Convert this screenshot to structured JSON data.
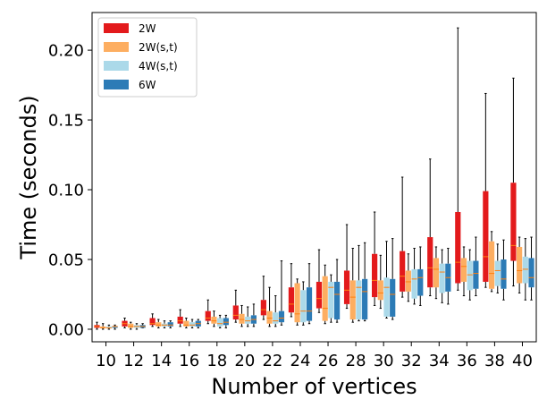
{
  "chart_data": {
    "type": "boxplot",
    "xlabel": "Number of vertices",
    "ylabel": "Time (seconds)",
    "ylim": [
      -0.009,
      0.227
    ],
    "yticks": [
      0.0,
      0.05,
      0.1,
      0.15,
      0.2
    ],
    "ytick_labels": [
      "0.00",
      "0.05",
      "0.10",
      "0.15",
      "0.20"
    ],
    "categories": [
      "10",
      "12",
      "14",
      "16",
      "18",
      "20",
      "22",
      "24",
      "26",
      "28",
      "30",
      "32",
      "34",
      "36",
      "38",
      "40"
    ],
    "legend_position": "top-left",
    "series": [
      {
        "name": "2W",
        "color": "#e31a1c",
        "boxes": [
          {
            "whislo": 0.0,
            "q1": 0.001,
            "med": 0.002,
            "q3": 0.003,
            "whishi": 0.005
          },
          {
            "whislo": 0.001,
            "q1": 0.002,
            "med": 0.004,
            "q3": 0.006,
            "whishi": 0.008
          },
          {
            "whislo": 0.002,
            "q1": 0.003,
            "med": 0.004,
            "q3": 0.008,
            "whishi": 0.011
          },
          {
            "whislo": 0.002,
            "q1": 0.004,
            "med": 0.006,
            "q3": 0.009,
            "whishi": 0.014
          },
          {
            "whislo": 0.004,
            "q1": 0.006,
            "med": 0.008,
            "q3": 0.013,
            "whishi": 0.021
          },
          {
            "whislo": 0.005,
            "q1": 0.007,
            "med": 0.01,
            "q3": 0.017,
            "whishi": 0.028
          },
          {
            "whislo": 0.007,
            "q1": 0.01,
            "med": 0.014,
            "q3": 0.021,
            "whishi": 0.038
          },
          {
            "whislo": 0.009,
            "q1": 0.012,
            "med": 0.018,
            "q3": 0.03,
            "whishi": 0.047
          },
          {
            "whislo": 0.012,
            "q1": 0.015,
            "med": 0.022,
            "q3": 0.034,
            "whishi": 0.057
          },
          {
            "whislo": 0.015,
            "q1": 0.018,
            "med": 0.028,
            "q3": 0.042,
            "whishi": 0.075
          },
          {
            "whislo": 0.017,
            "q1": 0.023,
            "med": 0.035,
            "q3": 0.054,
            "whishi": 0.084
          },
          {
            "whislo": 0.023,
            "q1": 0.027,
            "med": 0.038,
            "q3": 0.056,
            "whishi": 0.109
          },
          {
            "whislo": 0.024,
            "q1": 0.03,
            "med": 0.044,
            "q3": 0.066,
            "whishi": 0.122
          },
          {
            "whislo": 0.028,
            "q1": 0.033,
            "med": 0.048,
            "q3": 0.084,
            "whishi": 0.216
          },
          {
            "whislo": 0.03,
            "q1": 0.034,
            "med": 0.052,
            "q3": 0.099,
            "whishi": 0.169
          },
          {
            "whislo": 0.031,
            "q1": 0.049,
            "med": 0.06,
            "q3": 0.105,
            "whishi": 0.18
          }
        ]
      },
      {
        "name": "2W(s,t)",
        "color": "#fdae61",
        "boxes": [
          {
            "whislo": 0.0,
            "q1": 0.001,
            "med": 0.001,
            "q3": 0.002,
            "whishi": 0.004
          },
          {
            "whislo": 0.0,
            "q1": 0.001,
            "med": 0.002,
            "q3": 0.004,
            "whishi": 0.005
          },
          {
            "whislo": 0.001,
            "q1": 0.002,
            "med": 0.003,
            "q3": 0.005,
            "whishi": 0.007
          },
          {
            "whislo": 0.001,
            "q1": 0.002,
            "med": 0.003,
            "q3": 0.006,
            "whishi": 0.008
          },
          {
            "whislo": 0.002,
            "q1": 0.004,
            "med": 0.006,
            "q3": 0.009,
            "whishi": 0.013
          },
          {
            "whislo": 0.002,
            "q1": 0.004,
            "med": 0.007,
            "q3": 0.011,
            "whishi": 0.017
          },
          {
            "whislo": 0.002,
            "q1": 0.004,
            "med": 0.008,
            "q3": 0.013,
            "whishi": 0.03
          },
          {
            "whislo": 0.003,
            "q1": 0.005,
            "med": 0.011,
            "q3": 0.033,
            "whishi": 0.036
          },
          {
            "whislo": 0.004,
            "q1": 0.006,
            "med": 0.015,
            "q3": 0.038,
            "whishi": 0.046
          },
          {
            "whislo": 0.005,
            "q1": 0.007,
            "med": 0.023,
            "q3": 0.035,
            "whishi": 0.058
          },
          {
            "whislo": 0.015,
            "q1": 0.021,
            "med": 0.026,
            "q3": 0.035,
            "whishi": 0.053
          },
          {
            "whislo": 0.02,
            "q1": 0.027,
            "med": 0.034,
            "q3": 0.042,
            "whishi": 0.054
          },
          {
            "whislo": 0.022,
            "q1": 0.03,
            "med": 0.043,
            "q3": 0.051,
            "whishi": 0.059
          },
          {
            "whislo": 0.024,
            "q1": 0.034,
            "med": 0.045,
            "q3": 0.051,
            "whishi": 0.059
          },
          {
            "whislo": 0.027,
            "q1": 0.029,
            "med": 0.04,
            "q3": 0.063,
            "whishi": 0.07
          },
          {
            "whislo": 0.026,
            "q1": 0.033,
            "med": 0.042,
            "q3": 0.059,
            "whishi": 0.066
          }
        ]
      },
      {
        "name": "4W(s,t)",
        "color": "#abd9e9",
        "boxes": [
          {
            "whislo": 0.0,
            "q1": 0.001,
            "med": 0.001,
            "q3": 0.002,
            "whishi": 0.003
          },
          {
            "whislo": 0.0,
            "q1": 0.001,
            "med": 0.002,
            "q3": 0.003,
            "whishi": 0.004
          },
          {
            "whislo": 0.001,
            "q1": 0.002,
            "med": 0.003,
            "q3": 0.004,
            "whishi": 0.006
          },
          {
            "whislo": 0.001,
            "q1": 0.002,
            "med": 0.003,
            "q3": 0.005,
            "whishi": 0.007
          },
          {
            "whislo": 0.001,
            "q1": 0.002,
            "med": 0.004,
            "q3": 0.008,
            "whishi": 0.01
          },
          {
            "whislo": 0.002,
            "q1": 0.004,
            "med": 0.006,
            "q3": 0.009,
            "whishi": 0.016
          },
          {
            "whislo": 0.002,
            "q1": 0.004,
            "med": 0.006,
            "q3": 0.012,
            "whishi": 0.024
          },
          {
            "whislo": 0.003,
            "q1": 0.005,
            "med": 0.013,
            "q3": 0.028,
            "whishi": 0.034
          },
          {
            "whislo": 0.005,
            "q1": 0.008,
            "med": 0.03,
            "q3": 0.034,
            "whishi": 0.039
          },
          {
            "whislo": 0.006,
            "q1": 0.007,
            "med": 0.03,
            "q3": 0.035,
            "whishi": 0.06
          },
          {
            "whislo": 0.008,
            "q1": 0.009,
            "med": 0.03,
            "q3": 0.037,
            "whishi": 0.063
          },
          {
            "whislo": 0.018,
            "q1": 0.022,
            "med": 0.036,
            "q3": 0.043,
            "whishi": 0.058
          },
          {
            "whislo": 0.019,
            "q1": 0.026,
            "med": 0.041,
            "q3": 0.047,
            "whishi": 0.057
          },
          {
            "whislo": 0.021,
            "q1": 0.028,
            "med": 0.039,
            "q3": 0.049,
            "whishi": 0.057
          },
          {
            "whislo": 0.026,
            "q1": 0.031,
            "med": 0.042,
            "q3": 0.049,
            "whishi": 0.061
          },
          {
            "whislo": 0.021,
            "q1": 0.033,
            "med": 0.043,
            "q3": 0.052,
            "whishi": 0.065
          }
        ]
      },
      {
        "name": "6W",
        "color": "#2c7bb6",
        "boxes": [
          {
            "whislo": 0.0,
            "q1": 0.001,
            "med": 0.002,
            "q3": 0.002,
            "whishi": 0.003
          },
          {
            "whislo": 0.001,
            "q1": 0.001,
            "med": 0.002,
            "q3": 0.003,
            "whishi": 0.004
          },
          {
            "whislo": 0.001,
            "q1": 0.002,
            "med": 0.003,
            "q3": 0.005,
            "whishi": 0.006
          },
          {
            "whislo": 0.001,
            "q1": 0.002,
            "med": 0.004,
            "q3": 0.006,
            "whishi": 0.007
          },
          {
            "whislo": 0.001,
            "q1": 0.003,
            "med": 0.005,
            "q3": 0.008,
            "whishi": 0.01
          },
          {
            "whislo": 0.002,
            "q1": 0.004,
            "med": 0.007,
            "q3": 0.01,
            "whishi": 0.018
          },
          {
            "whislo": 0.003,
            "q1": 0.005,
            "med": 0.008,
            "q3": 0.013,
            "whishi": 0.049
          },
          {
            "whislo": 0.004,
            "q1": 0.006,
            "med": 0.013,
            "q3": 0.03,
            "whishi": 0.047
          },
          {
            "whislo": 0.005,
            "q1": 0.007,
            "med": 0.025,
            "q3": 0.034,
            "whishi": 0.05
          },
          {
            "whislo": 0.006,
            "q1": 0.007,
            "med": 0.027,
            "q3": 0.036,
            "whishi": 0.062
          },
          {
            "whislo": 0.007,
            "q1": 0.009,
            "med": 0.025,
            "q3": 0.036,
            "whishi": 0.065
          },
          {
            "whislo": 0.017,
            "q1": 0.024,
            "med": 0.037,
            "q3": 0.043,
            "whishi": 0.059
          },
          {
            "whislo": 0.018,
            "q1": 0.027,
            "med": 0.037,
            "q3": 0.047,
            "whishi": 0.058
          },
          {
            "whislo": 0.024,
            "q1": 0.029,
            "med": 0.04,
            "q3": 0.049,
            "whishi": 0.066
          },
          {
            "whislo": 0.021,
            "q1": 0.029,
            "med": 0.036,
            "q3": 0.05,
            "whishi": 0.064
          },
          {
            "whislo": 0.021,
            "q1": 0.03,
            "med": 0.037,
            "q3": 0.051,
            "whishi": 0.066
          }
        ]
      }
    ]
  }
}
